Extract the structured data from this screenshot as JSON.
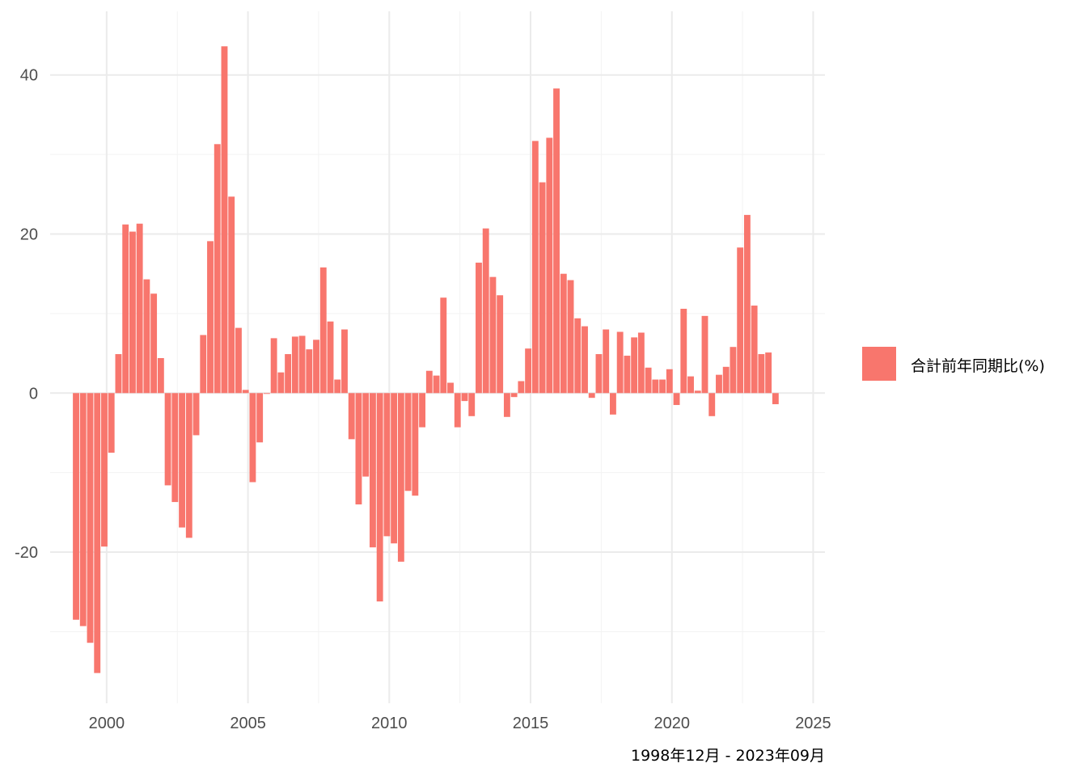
{
  "chart_data": {
    "type": "bar",
    "x_unit": "quarter",
    "x_start": "1998-12",
    "x_step_months": 3,
    "values": [
      -28.5,
      -29.3,
      -31.4,
      -35.2,
      -19.3,
      -7.5,
      4.9,
      21.2,
      20.3,
      21.3,
      14.3,
      12.5,
      4.4,
      -11.6,
      -13.7,
      -16.9,
      -18.2,
      -5.3,
      7.3,
      19.1,
      31.3,
      43.6,
      24.7,
      8.2,
      0.4,
      -11.2,
      -6.2,
      -0.1,
      6.9,
      2.6,
      4.9,
      7.1,
      7.2,
      5.5,
      6.7,
      15.8,
      9.0,
      1.7,
      8.0,
      -5.8,
      -14.0,
      -10.5,
      -19.4,
      -26.2,
      -18.0,
      -18.9,
      -21.2,
      -12.3,
      -12.9,
      -4.3,
      2.8,
      2.2,
      12.0,
      1.3,
      -4.3,
      -1.0,
      -2.9,
      16.4,
      20.7,
      14.6,
      12.3,
      -3.0,
      -0.5,
      1.5,
      5.6,
      31.7,
      26.5,
      32.1,
      38.3,
      15.0,
      14.2,
      9.4,
      8.4,
      -0.6,
      4.9,
      8.0,
      -2.7,
      7.7,
      4.7,
      7.0,
      7.6,
      3.2,
      1.7,
      1.7,
      3.0,
      -1.5,
      10.6,
      2.1,
      0.3,
      9.7,
      -2.9,
      2.3,
      3.3,
      5.8,
      18.3,
      22.4,
      11.0,
      4.9,
      5.1,
      -1.4
    ],
    "x_ticks": [
      "2000",
      "2005",
      "2010",
      "2015",
      "2020",
      "2025"
    ],
    "y_ticks": [
      "40",
      "20",
      "0",
      "-20"
    ],
    "xlim": [
      "1998-01",
      "2025-06"
    ],
    "ylim": [
      -39,
      48
    ],
    "legend": {
      "label": "合計前年同期比(%)",
      "position": "right"
    },
    "caption": "1998年12月 - 2023年09月",
    "grid": true,
    "colors": {
      "bar": "#F8766D",
      "grid_major": "#ebebeb",
      "grid_minor": "#f3f3f3"
    }
  }
}
